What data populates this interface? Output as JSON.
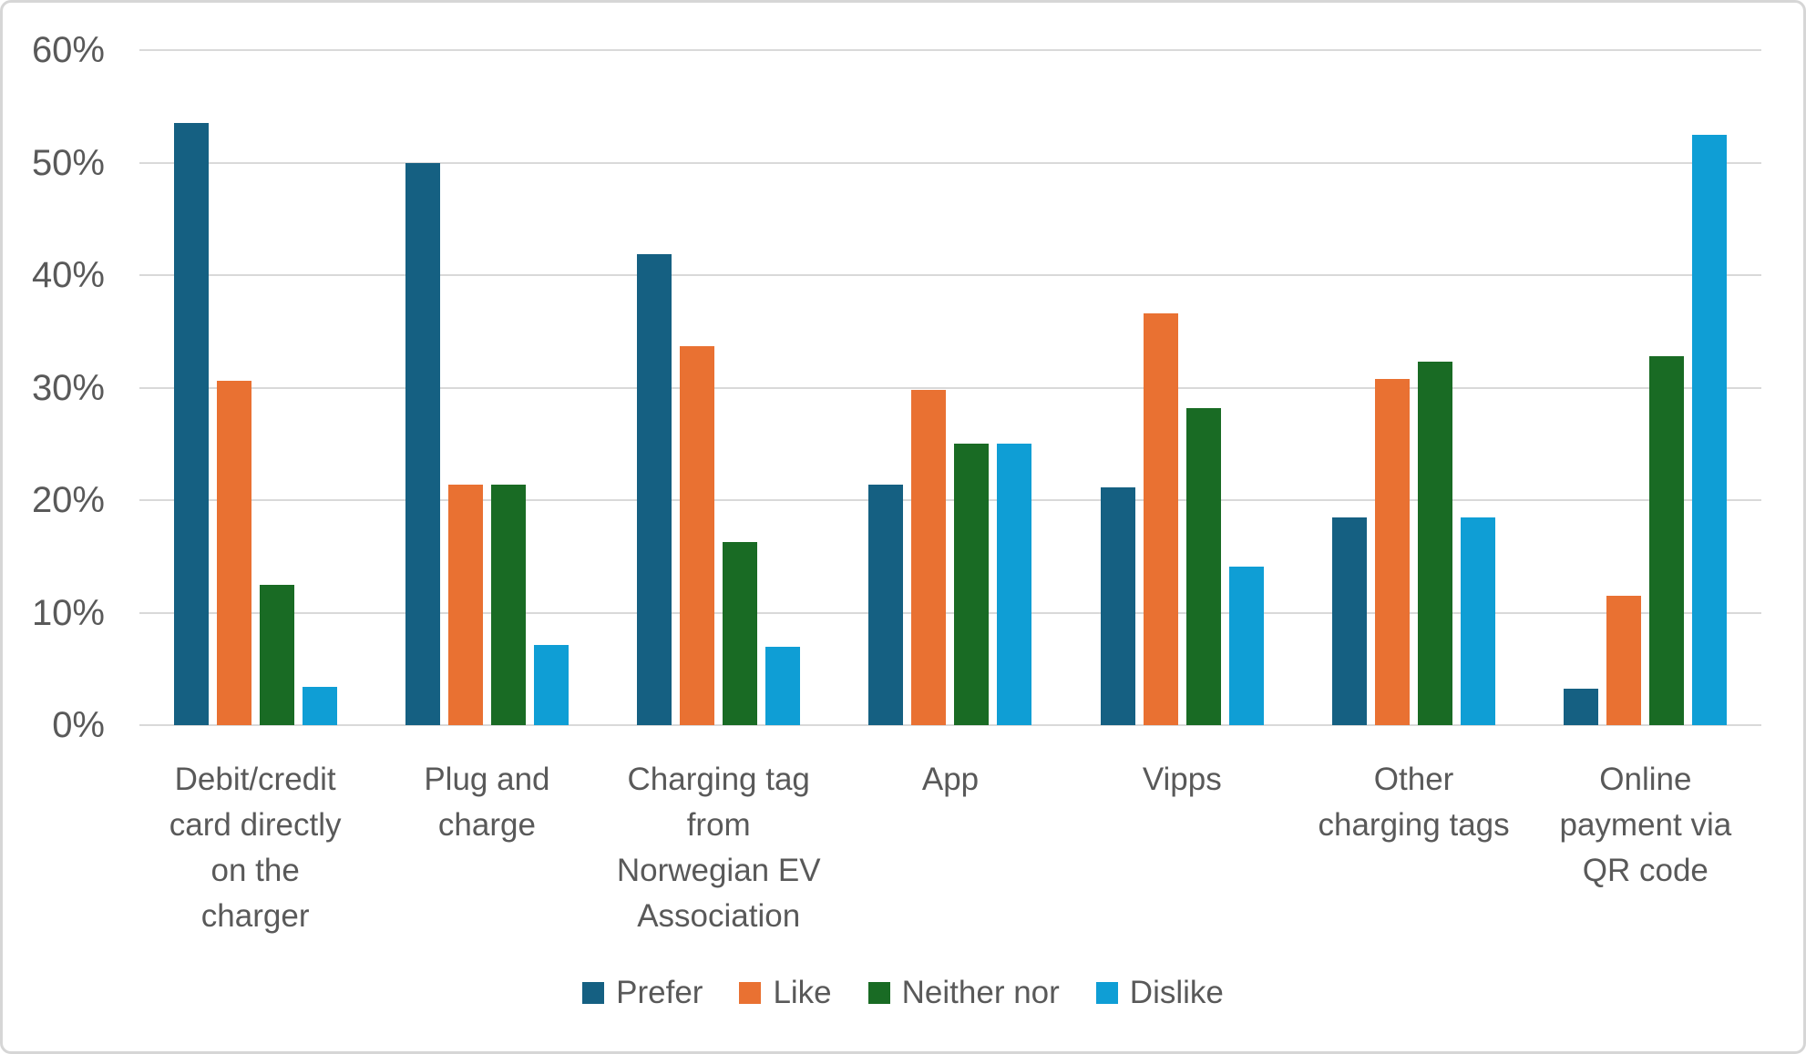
{
  "chart_data": {
    "type": "bar",
    "title": "",
    "xlabel": "",
    "ylabel": "",
    "categories": [
      "Debit/credit\ncard directly\non the\ncharger",
      "Plug and\ncharge",
      "Charging tag\nfrom\nNorwegian EV\nAssociation",
      "App",
      "Vipps",
      "Other\ncharging tags",
      "Online\npayment via\nQR code"
    ],
    "series": [
      {
        "name": "Prefer",
        "color": "#156082",
        "values": [
          53.5,
          50.0,
          41.9,
          21.4,
          21.1,
          18.5,
          3.2
        ]
      },
      {
        "name": "Like",
        "color": "#E97132",
        "values": [
          30.6,
          21.4,
          33.7,
          29.8,
          36.6,
          30.8,
          11.5
        ]
      },
      {
        "name": "Neither nor",
        "color": "#196B24",
        "values": [
          12.5,
          21.4,
          16.3,
          25.0,
          28.2,
          32.3,
          32.8
        ]
      },
      {
        "name": "Dislike",
        "color": "#0F9ED5",
        "values": [
          3.4,
          7.1,
          7.0,
          25.0,
          14.1,
          18.5,
          52.5
        ]
      }
    ],
    "ylim": [
      0,
      60
    ],
    "ytick_step": 10,
    "ytick_labels": [
      "0%",
      "10%",
      "20%",
      "30%",
      "40%",
      "50%",
      "60%"
    ],
    "grid": "horizontal",
    "legend_position": "bottom"
  },
  "styles": {
    "grid_color": "#D9D9D9",
    "text_color": "#595959",
    "background": "#FFFFFF",
    "border_color": "#D6D6D6"
  }
}
